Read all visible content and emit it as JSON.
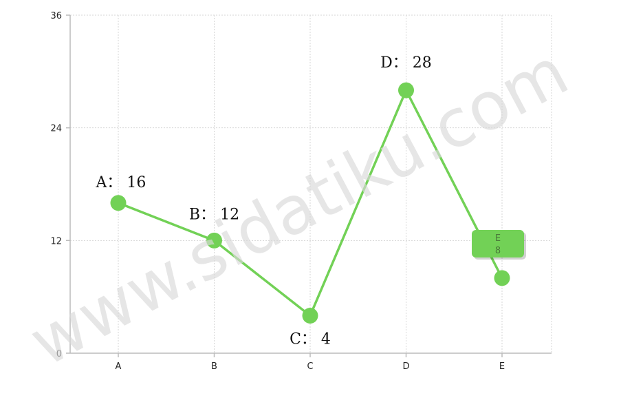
{
  "chart_data": {
    "type": "line",
    "categories": [
      "A",
      "B",
      "C",
      "D",
      "E"
    ],
    "series": [
      {
        "values": [
          16,
          12,
          4,
          28,
          8
        ]
      }
    ],
    "point_labels": [
      "A：  16",
      "B：  12",
      "C：  4",
      "D：  28",
      ""
    ],
    "y_ticks": [
      "0",
      "12",
      "24",
      "36"
    ],
    "ylim": [
      0,
      36
    ],
    "grid": true,
    "line_color": "#72d156",
    "tooltip": {
      "category": "E",
      "value": "8"
    }
  },
  "watermark": "www.sidatiku.com"
}
